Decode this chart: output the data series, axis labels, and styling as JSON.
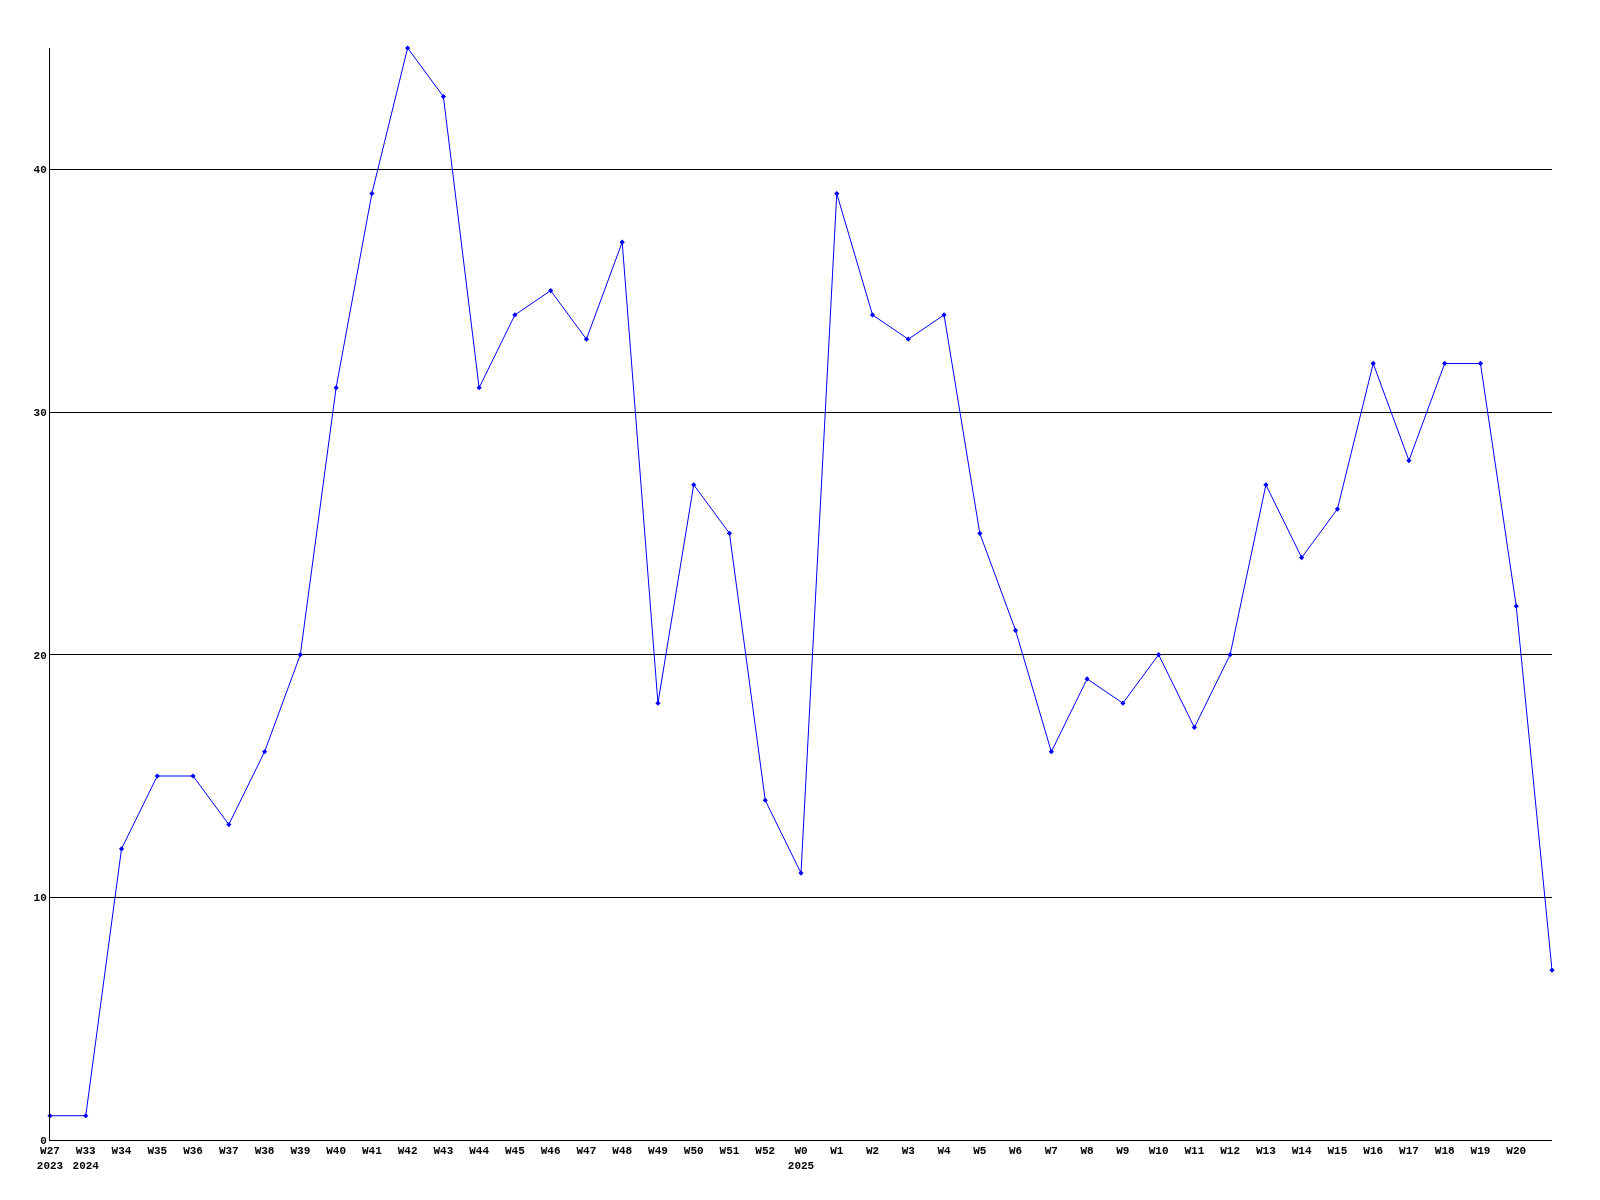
{
  "chart_data": {
    "type": "line",
    "categories": [
      "W27\n2023",
      "W33\n2024",
      "W34",
      "W35",
      "W36",
      "W37",
      "W38",
      "W39",
      "W40",
      "W41",
      "W42",
      "W43",
      "W44",
      "W45",
      "W46",
      "W47",
      "W48",
      "W49",
      "W50",
      "W51",
      "W52",
      "W0\n2025",
      "W1",
      "W2",
      "W3",
      "W4",
      "W5",
      "W6",
      "W7",
      "W8",
      "W9",
      "W10",
      "W11",
      "W12",
      "W13",
      "W14",
      "W15",
      "W16",
      "W17",
      "W18",
      "W19",
      "W20",
      null
    ],
    "series": [
      {
        "color": "#0000ff",
        "values": [
          1,
          1,
          12,
          15,
          15,
          13,
          16,
          20,
          31,
          39,
          45,
          43,
          31,
          34,
          35,
          33,
          37,
          18,
          27,
          25,
          14,
          11,
          39,
          34,
          33,
          34,
          25,
          21,
          16,
          19,
          18,
          20,
          17,
          20,
          27,
          24,
          26,
          32,
          28,
          32,
          32,
          22,
          7
        ]
      }
    ],
    "ylim": [
      0,
      45
    ],
    "yticks": [
      0,
      10,
      20,
      30,
      40
    ],
    "grid": "y",
    "marker": "diamond",
    "line_style": "solid",
    "legend": false
  }
}
